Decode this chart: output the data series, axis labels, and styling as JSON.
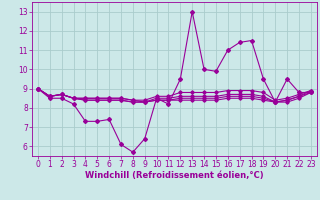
{
  "bg_color": "#cce8e8",
  "grid_color": "#aacccc",
  "line_color": "#990099",
  "xlim": [
    -0.5,
    23.5
  ],
  "ylim": [
    5.5,
    13.5
  ],
  "yticks": [
    6,
    7,
    8,
    9,
    10,
    11,
    12,
    13
  ],
  "xticks": [
    0,
    1,
    2,
    3,
    4,
    5,
    6,
    7,
    8,
    9,
    10,
    11,
    12,
    13,
    14,
    15,
    16,
    17,
    18,
    19,
    20,
    21,
    22,
    23
  ],
  "xlabel": "Windchill (Refroidissement éolien,°C)",
  "lines": [
    [
      9.0,
      8.5,
      8.5,
      8.2,
      7.3,
      7.3,
      7.4,
      6.1,
      5.7,
      6.4,
      8.5,
      8.2,
      9.5,
      13.0,
      10.0,
      9.9,
      11.0,
      11.4,
      11.5,
      9.5,
      8.3,
      9.5,
      8.8,
      8.8
    ],
    [
      9.0,
      8.6,
      8.7,
      8.5,
      8.5,
      8.5,
      8.5,
      8.5,
      8.4,
      8.4,
      8.6,
      8.6,
      8.8,
      8.8,
      8.8,
      8.8,
      8.9,
      8.9,
      8.9,
      8.8,
      8.4,
      8.5,
      8.7,
      8.9
    ],
    [
      9.0,
      8.6,
      8.7,
      8.5,
      8.5,
      8.5,
      8.5,
      8.5,
      8.4,
      8.3,
      8.5,
      8.5,
      8.6,
      8.6,
      8.6,
      8.6,
      8.7,
      8.7,
      8.7,
      8.6,
      8.3,
      8.4,
      8.6,
      8.9
    ],
    [
      9.0,
      8.6,
      8.7,
      8.5,
      8.4,
      8.4,
      8.4,
      8.4,
      8.3,
      8.3,
      8.4,
      8.4,
      8.5,
      8.5,
      8.5,
      8.5,
      8.6,
      8.6,
      8.6,
      8.5,
      8.3,
      8.4,
      8.6,
      8.8
    ],
    [
      9.0,
      8.6,
      8.7,
      8.5,
      8.4,
      8.4,
      8.4,
      8.4,
      8.3,
      8.3,
      8.4,
      8.4,
      8.4,
      8.4,
      8.4,
      8.4,
      8.5,
      8.5,
      8.5,
      8.4,
      8.3,
      8.3,
      8.5,
      8.8
    ]
  ],
  "marker": "D",
  "markersize": 2.0,
  "linewidth": 0.8,
  "tick_fontsize": 5.5,
  "xlabel_fontsize": 6.0
}
